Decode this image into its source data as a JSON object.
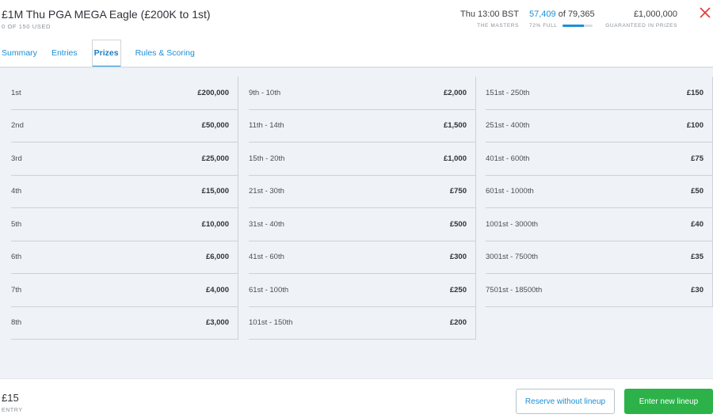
{
  "contest": {
    "title": "£1M Thu PGA MEGA Eagle (£200K to 1st)",
    "used": "0 OF 150 USED"
  },
  "stats": {
    "start_time": "Thu 13:00 BST",
    "event": "THE MASTERS",
    "entries_current": "57,409",
    "entries_of": " of 79,365",
    "fill_label": "72% FULL",
    "fill_fraction": 0.72,
    "prize_pool": "£1,000,000",
    "prize_label": "GUARANTEED IN PRIZES"
  },
  "tabs": [
    {
      "label": "Summary",
      "active": false
    },
    {
      "label": "Entries",
      "active": false
    },
    {
      "label": "Prizes",
      "active": true
    },
    {
      "label": "Rules & Scoring",
      "active": false
    }
  ],
  "prizes": {
    "col1": [
      {
        "rank": "1st",
        "amount": "£200,000"
      },
      {
        "rank": "2nd",
        "amount": "£50,000"
      },
      {
        "rank": "3rd",
        "amount": "£25,000"
      },
      {
        "rank": "4th",
        "amount": "£15,000"
      },
      {
        "rank": "5th",
        "amount": "£10,000"
      },
      {
        "rank": "6th",
        "amount": "£6,000"
      },
      {
        "rank": "7th",
        "amount": "£4,000"
      },
      {
        "rank": "8th",
        "amount": "£3,000"
      }
    ],
    "col2": [
      {
        "rank": "9th - 10th",
        "amount": "£2,000"
      },
      {
        "rank": "11th - 14th",
        "amount": "£1,500"
      },
      {
        "rank": "15th - 20th",
        "amount": "£1,000"
      },
      {
        "rank": "21st - 30th",
        "amount": "£750"
      },
      {
        "rank": "31st - 40th",
        "amount": "£500"
      },
      {
        "rank": "41st - 60th",
        "amount": "£300"
      },
      {
        "rank": "61st - 100th",
        "amount": "£250"
      },
      {
        "rank": "101st - 150th",
        "amount": "£200"
      }
    ],
    "col3": [
      {
        "rank": "151st - 250th",
        "amount": "£150"
      },
      {
        "rank": "251st - 400th",
        "amount": "£100"
      },
      {
        "rank": "401st - 600th",
        "amount": "£75"
      },
      {
        "rank": "601st - 1000th",
        "amount": "£50"
      },
      {
        "rank": "1001st - 3000th",
        "amount": "£40"
      },
      {
        "rank": "3001st - 7500th",
        "amount": "£35"
      },
      {
        "rank": "7501st - 18500th",
        "amount": "£30"
      }
    ]
  },
  "footer": {
    "fee": "£15",
    "fee_label": "ENTRY",
    "reserve_label": "Reserve without lineup",
    "enter_label": "Enter new lineup"
  },
  "colors": {
    "accent": "#1b8fd6",
    "close": "#e0413a",
    "cta": "#2db24a"
  },
  "icons": {
    "close": "close-icon"
  }
}
